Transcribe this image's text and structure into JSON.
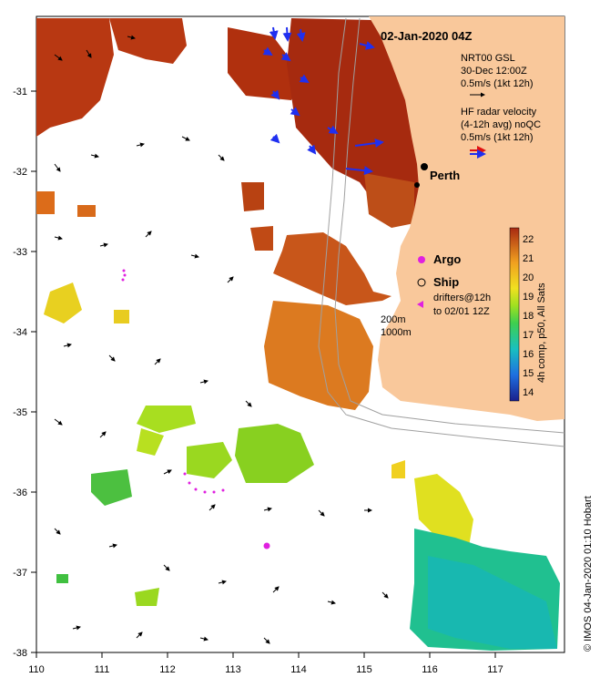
{
  "title": "02-Jan-2020 04Z",
  "legend": {
    "nrt_title": "NRT00 GSL",
    "nrt_date": "30-Dec 12:00Z",
    "nrt_scale": "0.5m/s (1kt 12h)",
    "hf_title": "HF radar velocity",
    "hf_sub": "(4-12h avg) noQC",
    "hf_scale": "0.5m/s (1kt 12h)",
    "argo": "Argo",
    "ship": "Ship",
    "drifters_1": "drifters@12h",
    "drifters_2": "to 02/01 12Z",
    "contour_1": "200m",
    "contour_2": "1000m"
  },
  "city": "Perth",
  "colorbar": {
    "label": "4h comp, p50, All Sats",
    "ticks": [
      "22",
      "21",
      "20",
      "19",
      "18",
      "17",
      "16",
      "15",
      "14"
    ]
  },
  "credit": "© IMOS 04-Jan-2020 01:10 Hobart",
  "axes": {
    "x_ticks": [
      "110",
      "111",
      "112",
      "113",
      "114",
      "115",
      "116",
      "117"
    ],
    "y_ticks": [
      "-31",
      "-32",
      "-33",
      "-34",
      "-35",
      "-36",
      "-37",
      "-38"
    ]
  },
  "colors": {
    "land": "#f9c89b",
    "hf_radar": "#1f2ff0",
    "nrt_arrow": "#000000",
    "argo": "#e020e0"
  }
}
